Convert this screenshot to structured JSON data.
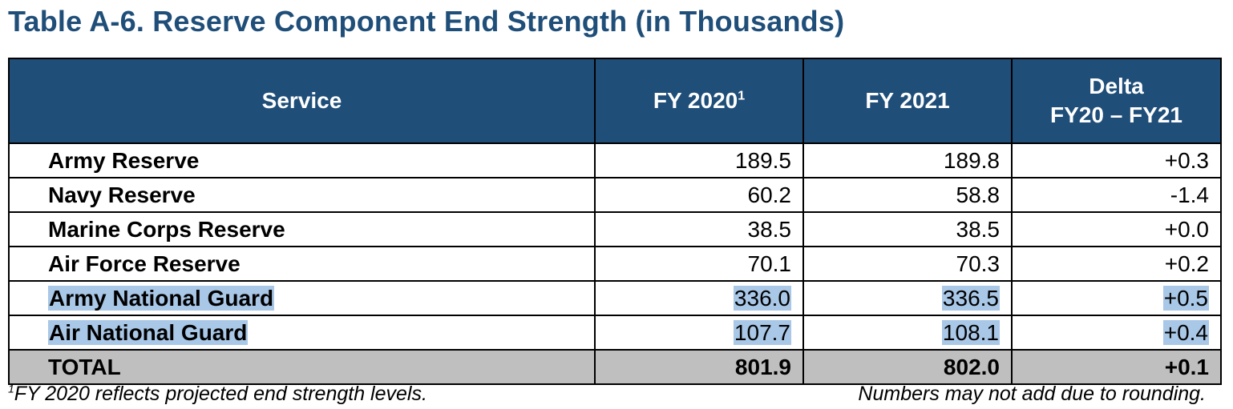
{
  "title": "Table A-6.  Reserve Component End Strength (in Thousands)",
  "header": {
    "service": "Service",
    "fy2020": "FY 2020",
    "fy2020_marker": "1",
    "fy2021": "FY 2021",
    "delta_line1": "Delta",
    "delta_line2": "FY20 – FY21"
  },
  "rows": [
    {
      "service": "Army Reserve",
      "fy2020": "189.5",
      "fy2021": "189.8",
      "delta": "+0.3"
    },
    {
      "service": "Navy Reserve",
      "fy2020": "60.2",
      "fy2021": "58.8",
      "delta": "-1.4"
    },
    {
      "service": "Marine Corps Reserve",
      "fy2020": "38.5",
      "fy2021": "38.5",
      "delta": "+0.0"
    },
    {
      "service": "Air Force Reserve",
      "fy2020": "70.1",
      "fy2021": "70.3",
      "delta": "+0.2"
    },
    {
      "service": "Army National Guard",
      "fy2020": "336.0",
      "fy2021": "336.5",
      "delta": "+0.5"
    },
    {
      "service": "Air National Guard",
      "fy2020": "107.7",
      "fy2021": "108.1",
      "delta": "+0.4"
    }
  ],
  "total": {
    "service": "TOTAL",
    "fy2020": "801.9",
    "fy2021": "802.0",
    "delta": "+0.1"
  },
  "footnote": {
    "marker": "1",
    "text": "FY 2020 reflects projected end strength levels.",
    "rounding_note": "Numbers may not add due to rounding."
  },
  "colors": {
    "header_background": "#1f4e79",
    "title": "#1f4e79",
    "highlight": "#a9c7e6",
    "total_row": "#bfbfbf"
  }
}
